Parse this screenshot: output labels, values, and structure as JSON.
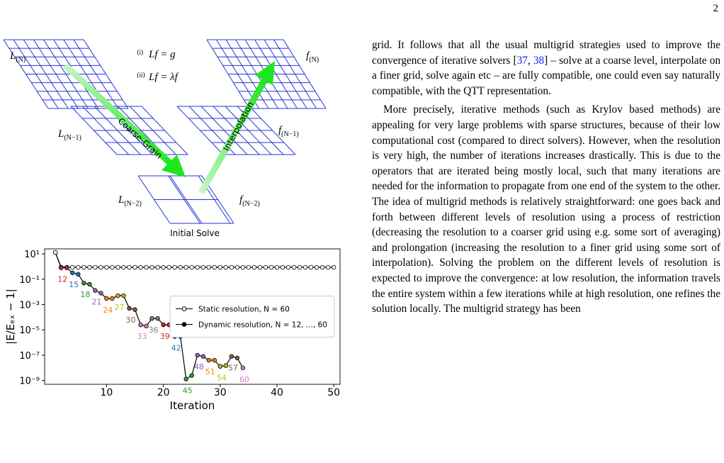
{
  "page_number": "2",
  "diagram": {
    "equations": [
      {
        "tag": "(i)",
        "formula": "Lf = g"
      },
      {
        "tag": "(ii)",
        "formula": "Lf = λf"
      }
    ],
    "grid_labels": [
      {
        "symbol": "L",
        "subscript": "(N)"
      },
      {
        "symbol": "L",
        "subscript": "(N−1)"
      },
      {
        "symbol": "L",
        "subscript": "(N−2)"
      },
      {
        "symbol": "f",
        "subscript": "(N)"
      },
      {
        "symbol": "f",
        "subscript": "(N−1)"
      },
      {
        "symbol": "f",
        "subscript": "(N−2)"
      }
    ],
    "arrows": [
      "Coarse-Grain",
      "Interpolation"
    ],
    "caption": "Initial Solve"
  },
  "chart_data": {
    "type": "line",
    "yscale": "log",
    "xlabel": "Iteration",
    "ylabel": "|E/Eₑₓ − 1|",
    "xlim": [
      -0.9,
      51.1
    ],
    "ylim": [
      5e-10,
      25
    ],
    "xticks": [
      10,
      20,
      30,
      40,
      50
    ],
    "yticks": [
      {
        "value": 10,
        "label": "10¹"
      },
      {
        "value": 0.1,
        "label": "10⁻¹"
      },
      {
        "value": 0.001,
        "label": "10⁻³"
      },
      {
        "value": 1e-05,
        "label": "10⁻⁵"
      },
      {
        "value": 1e-07,
        "label": "10⁻⁷"
      },
      {
        "value": 1e-09,
        "label": "10⁻⁹"
      }
    ],
    "legend": "center right",
    "series": [
      {
        "name": "Static resolution, N = 60",
        "color": "#000000",
        "marker_fill": "#ffffff",
        "x": [
          1,
          2,
          3,
          4,
          5,
          6,
          7,
          8,
          9,
          10,
          11,
          12,
          13,
          14,
          15,
          16,
          17,
          18,
          19,
          20,
          21,
          22,
          23,
          24,
          25,
          26,
          27,
          28,
          29,
          30,
          31,
          32,
          33,
          34,
          35,
          36,
          37,
          38,
          39,
          40,
          41,
          42,
          43,
          44,
          45,
          46,
          47,
          48,
          49,
          50
        ],
        "values": [
          13,
          0.9,
          0.87,
          0.87,
          0.87,
          0.87,
          0.87,
          0.87,
          0.87,
          0.87,
          0.87,
          0.87,
          0.87,
          0.87,
          0.87,
          0.87,
          0.87,
          0.87,
          0.87,
          0.87,
          0.87,
          0.87,
          0.87,
          0.87,
          0.87,
          0.87,
          0.87,
          0.87,
          0.87,
          0.87,
          0.87,
          0.87,
          0.87,
          0.87,
          0.87,
          0.87,
          0.87,
          0.87,
          0.87,
          0.87,
          0.87,
          0.87,
          0.87,
          0.87,
          0.87,
          0.87,
          0.87,
          0.87,
          0.87,
          0.87
        ]
      },
      {
        "name": "Dynamic resolution, N = 12, ..., 60",
        "color": "#000000",
        "marker_fill": "#000000",
        "x": [
          1,
          2,
          3,
          4,
          5,
          6,
          7,
          8,
          9,
          10,
          11,
          12,
          13,
          14,
          15,
          16,
          17,
          18,
          19,
          20,
          21,
          22,
          23,
          24,
          25,
          26,
          27,
          28,
          29,
          30,
          31,
          32,
          33,
          34
        ],
        "values": [
          13,
          0.8,
          0.8,
          0.32,
          0.25,
          0.05,
          0.04,
          0.013,
          0.008,
          0.003,
          0.003,
          0.005,
          0.005,
          0.0005,
          0.0004,
          2.5e-05,
          2e-05,
          8e-05,
          8e-05,
          2.5e-05,
          2.5e-05,
          3e-06,
          3e-06,
          1.3e-09,
          2.5e-09,
          1e-07,
          8e-08,
          4e-08,
          4e-08,
          1.3e-08,
          1.5e-08,
          8e-08,
          6e-08,
          1e-08
        ]
      }
    ],
    "resolutions": [
      12,
      15,
      18,
      21,
      24,
      27,
      30,
      33,
      36,
      39,
      42,
      45,
      48,
      51,
      54,
      57,
      60
    ],
    "resolution_colors": [
      "#d62728",
      "#1f77b4",
      "#2ca02c",
      "#9467bd",
      "#ff7f0e",
      "#bcbd22",
      "#8c564b",
      "#e377c2",
      "#7f7f7f",
      "#d62728",
      "#1f77b4",
      "#2ca02c",
      "#9467bd",
      "#ff7f0e",
      "#bcbd22",
      "#8c564b",
      "#e377c2"
    ]
  },
  "body": {
    "paragraphs": [
      {
        "before": "grid. It follows that all the usual multigrid strategies used to improve the convergence of iterative solvers [",
        "citations": [
          "37",
          "38"
        ],
        "after": "] – solve at a coarse level, interpolate on a finer grid, solve again etc – are fully compatible, one could even say naturally compatible, with the QTT representation."
      },
      {
        "text": "More precisely, iterative methods (such as Krylov based methods) are appealing for very large problems with sparse structures, because of their low computational cost (compared to direct solvers). However, when the resolution is very high, the number of iterations increases drastically. This is due to the operators that are iterated being mostly local, such that many iterations are needed for the information to propagate from one end of the system to the other. The idea of multigrid methods is relatively straightforward: one goes back and forth between different levels of resolution using a process of restriction (decreasing the resolution to a coarser grid using e.g. some sort of averaging) and prolongation (increasing the resolution to a finer grid using some sort of interpolation). Solving the problem on the different levels of resolution is expected to improve the convergence: at low resolution, the information travels the entire system within a few iterations while at high resolution, one refines the solution locally. The multigrid strategy has been"
      }
    ]
  }
}
